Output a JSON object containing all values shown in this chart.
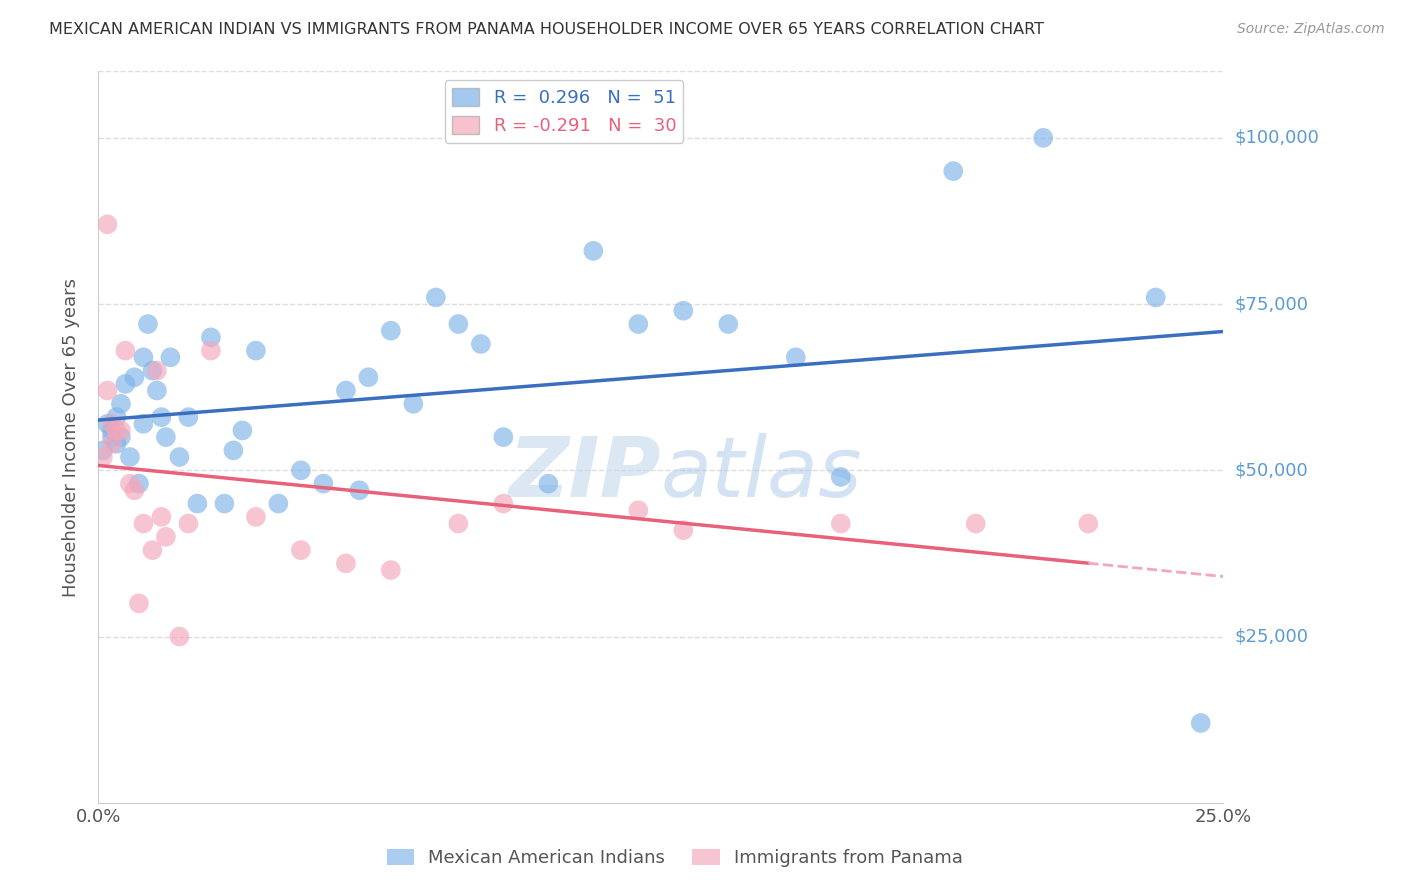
{
  "title": "MEXICAN AMERICAN INDIAN VS IMMIGRANTS FROM PANAMA HOUSEHOLDER INCOME OVER 65 YEARS CORRELATION CHART",
  "source": "Source: ZipAtlas.com",
  "ylabel": "Householder Income Over 65 years",
  "xlim": [
    0.0,
    0.25
  ],
  "ylim": [
    0,
    110000
  ],
  "yticks": [
    25000,
    50000,
    75000,
    100000
  ],
  "ytick_labels": [
    "$25,000",
    "$50,000",
    "$75,000",
    "$100,000"
  ],
  "xticks": [
    0.0,
    0.05,
    0.1,
    0.15,
    0.2,
    0.25
  ],
  "xtick_labels": [
    "0.0%",
    "",
    "",
    "",
    "",
    "25.0%"
  ],
  "blue_R": 0.296,
  "blue_N": 51,
  "pink_R": -0.291,
  "pink_N": 30,
  "blue_scatter_x": [
    0.001,
    0.002,
    0.003,
    0.003,
    0.004,
    0.004,
    0.005,
    0.005,
    0.006,
    0.007,
    0.008,
    0.009,
    0.01,
    0.01,
    0.011,
    0.012,
    0.013,
    0.014,
    0.015,
    0.016,
    0.018,
    0.02,
    0.022,
    0.025,
    0.028,
    0.03,
    0.032,
    0.035,
    0.04,
    0.045,
    0.05,
    0.055,
    0.058,
    0.06,
    0.065,
    0.07,
    0.075,
    0.08,
    0.085,
    0.09,
    0.1,
    0.11,
    0.12,
    0.13,
    0.14,
    0.155,
    0.165,
    0.19,
    0.21,
    0.235,
    0.245
  ],
  "blue_scatter_y": [
    53000,
    57000,
    56000,
    55000,
    54000,
    58000,
    60000,
    55000,
    63000,
    52000,
    64000,
    48000,
    57000,
    67000,
    72000,
    65000,
    62000,
    58000,
    55000,
    67000,
    52000,
    58000,
    45000,
    70000,
    45000,
    53000,
    56000,
    68000,
    45000,
    50000,
    48000,
    62000,
    47000,
    64000,
    71000,
    60000,
    76000,
    72000,
    69000,
    55000,
    48000,
    83000,
    72000,
    74000,
    72000,
    67000,
    49000,
    95000,
    100000,
    76000,
    12000
  ],
  "pink_scatter_x": [
    0.001,
    0.002,
    0.002,
    0.003,
    0.003,
    0.004,
    0.005,
    0.006,
    0.007,
    0.008,
    0.009,
    0.01,
    0.012,
    0.013,
    0.014,
    0.015,
    0.018,
    0.02,
    0.025,
    0.035,
    0.045,
    0.055,
    0.065,
    0.08,
    0.09,
    0.12,
    0.13,
    0.165,
    0.195,
    0.22
  ],
  "pink_scatter_y": [
    52000,
    87000,
    62000,
    57000,
    54000,
    56000,
    56000,
    68000,
    48000,
    47000,
    30000,
    42000,
    38000,
    65000,
    43000,
    40000,
    25000,
    42000,
    68000,
    43000,
    38000,
    36000,
    35000,
    42000,
    45000,
    44000,
    41000,
    42000,
    42000,
    42000
  ],
  "blue_color": "#7EB3E8",
  "pink_color": "#F4A7B9",
  "blue_line_color": "#3A6FBF",
  "pink_line_color": "#E8607A",
  "pink_line_dashed_color": "#F4A7B9",
  "watermark_zip": "ZIP",
  "watermark_atlas": "atlas",
  "background_color": "#FFFFFF",
  "grid_color": "#DDDDDD",
  "right_label_color": "#5B9BD5",
  "blue_label": "Mexican American Indians",
  "pink_label": "Immigrants from Panama"
}
